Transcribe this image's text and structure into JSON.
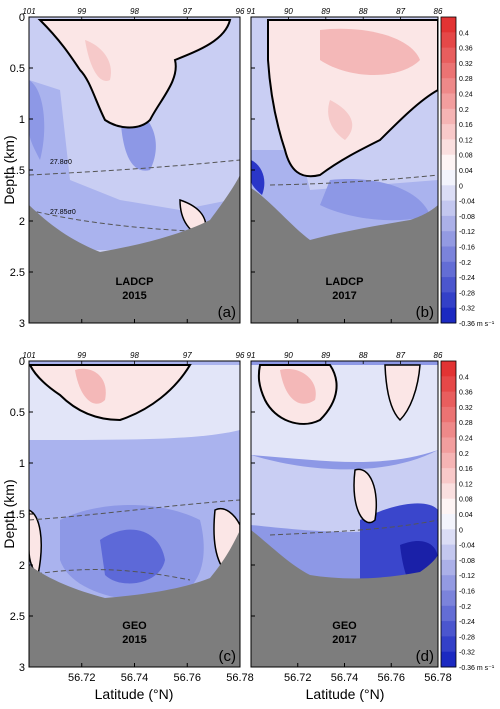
{
  "chart_data": {
    "type": "heatmap",
    "ylabel": "Depth (km)",
    "xlabel": "Latitude (°N)",
    "y_ticks": [
      "0",
      "0.5",
      "1",
      "1.5",
      "2",
      "2.5",
      "3"
    ],
    "ylim": [
      0,
      3
    ],
    "x_ticks": [
      "56.72",
      "56.74",
      "56.76",
      "56.78"
    ],
    "xlim": [
      56.7,
      56.78
    ],
    "colorbar": {
      "ticks": [
        "0.4",
        "0.36",
        "0.32",
        "0.28",
        "0.24",
        "0.2",
        "0.16",
        "0.12",
        "0.08",
        "0.04",
        "0",
        "-0.04",
        "-0.08",
        "-0.12",
        "-0.16",
        "-0.2",
        "-0.24",
        "-0.28",
        "-0.32",
        "-0.36 m s⁻¹"
      ],
      "range": [
        -0.4,
        0.4
      ],
      "positive_color": "#e03030",
      "negative_color": "#1020c0"
    },
    "panels": [
      {
        "id": "a",
        "method": "LADCP",
        "year": "2015",
        "tag": "(a)",
        "stations": [
          "101",
          "99",
          "98",
          "97",
          "96"
        ],
        "isopycnals": [
          "27.8σ0",
          "27.85σ0"
        ],
        "features": [
          {
            "lat": 56.728,
            "depth": 0.5,
            "value": 0.06
          },
          {
            "lat": 56.745,
            "depth": 1.2,
            "value": -0.12
          },
          {
            "lat": 56.705,
            "depth": 1.2,
            "value": -0.15
          }
        ]
      },
      {
        "id": "b",
        "method": "LADCP",
        "year": "2017",
        "tag": "(b)",
        "stations": [
          "91",
          "90",
          "89",
          "88",
          "87",
          "86"
        ],
        "isopycnals": [],
        "features": [
          {
            "lat": 56.745,
            "depth": 0.3,
            "value": 0.12
          },
          {
            "lat": 56.745,
            "depth": 1.8,
            "value": -0.2
          },
          {
            "lat": 56.705,
            "depth": 1.65,
            "value": -0.32
          }
        ]
      },
      {
        "id": "c",
        "method": "GEO",
        "year": "2015",
        "tag": "(c)",
        "stations": [
          "101",
          "99",
          "98",
          "97",
          "96"
        ],
        "isopycnals": [],
        "features": [
          {
            "lat": 56.722,
            "depth": 0.25,
            "value": 0.12
          },
          {
            "lat": 56.74,
            "depth": 1.65,
            "value": -0.22
          },
          {
            "lat": 56.765,
            "depth": 0.3,
            "value": -0.1
          }
        ]
      },
      {
        "id": "d",
        "method": "GEO",
        "year": "2017",
        "tag": "(d)",
        "stations": [
          "91",
          "90",
          "89",
          "88",
          "87",
          "86"
        ],
        "isopycnals": [],
        "features": [
          {
            "lat": 56.722,
            "depth": 0.25,
            "value": 0.16
          },
          {
            "lat": 56.775,
            "depth": 1.8,
            "value": -0.36
          },
          {
            "lat": 56.75,
            "depth": 1.3,
            "value": 0.02
          }
        ]
      }
    ]
  }
}
